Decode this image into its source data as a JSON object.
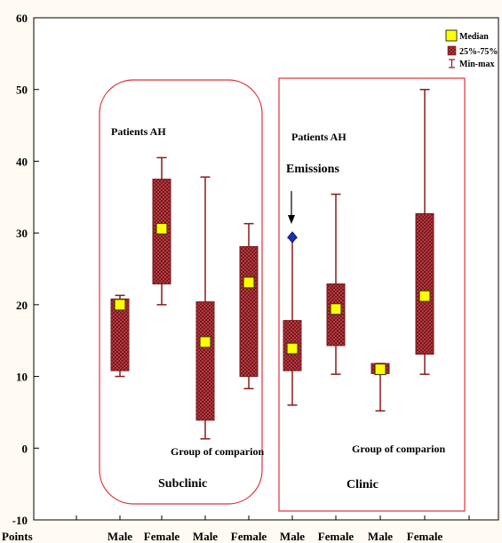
{
  "chart_data": {
    "type": "box",
    "title": "",
    "xlabel": "Points",
    "ylabel": "",
    "ylim": [
      -10,
      60
    ],
    "yticks": [
      -10,
      0,
      10,
      20,
      30,
      40,
      50,
      60
    ],
    "categories": [
      "Male",
      "Female",
      "Male",
      "Female",
      "Male",
      "Female",
      "Male",
      "Female"
    ],
    "boxes": [
      {
        "category": "Male",
        "min": 10,
        "q1": 10.8,
        "median": 20,
        "q3": 20.8,
        "max": 21.3
      },
      {
        "category": "Female",
        "min": 20,
        "q1": 22.9,
        "median": 30.6,
        "q3": 37.5,
        "max": 40.5
      },
      {
        "category": "Male",
        "min": 1.3,
        "q1": 3.9,
        "median": 14.8,
        "q3": 20.4,
        "max": 37.8
      },
      {
        "category": "Female",
        "min": 8.3,
        "q1": 10,
        "median": 23.1,
        "q3": 28.1,
        "max": 31.3
      },
      {
        "category": "Male",
        "min": 6,
        "q1": 10.8,
        "median": 13.9,
        "q3": 17.8,
        "max": 29.3
      },
      {
        "category": "Female",
        "min": 10.3,
        "q1": 14.3,
        "median": 19.4,
        "q3": 22.9,
        "max": 35.4
      },
      {
        "category": "Male",
        "min": 5.2,
        "q1": 10.4,
        "median": 11,
        "q3": 11.8,
        "max": 11.8
      },
      {
        "category": "Female",
        "min": 10.3,
        "q1": 13.1,
        "median": 21.2,
        "q3": 32.7,
        "max": 50
      }
    ],
    "outliers": [
      {
        "box": 4,
        "value": 29.4
      }
    ],
    "legend": {
      "position": "top-right",
      "entries": [
        "Median",
        "25%-75%",
        "Min-max"
      ]
    },
    "groups": [
      {
        "name": "Subclinic",
        "label_top": "Patients AH",
        "label_bottom": "Group of comparion"
      },
      {
        "name": "Clinic",
        "label_top": "Patients AH",
        "label_extra": "Emissions",
        "label_bottom": "Group of comparion"
      }
    ],
    "grid": false,
    "colors": {
      "box_fill": "#b0343d",
      "box_stroke": "#7a1a1f",
      "whisker": "#8b1a1a",
      "median_fill": "#ffff00",
      "outlier": "#1a2fb0",
      "group_border": "#e0303a"
    }
  }
}
